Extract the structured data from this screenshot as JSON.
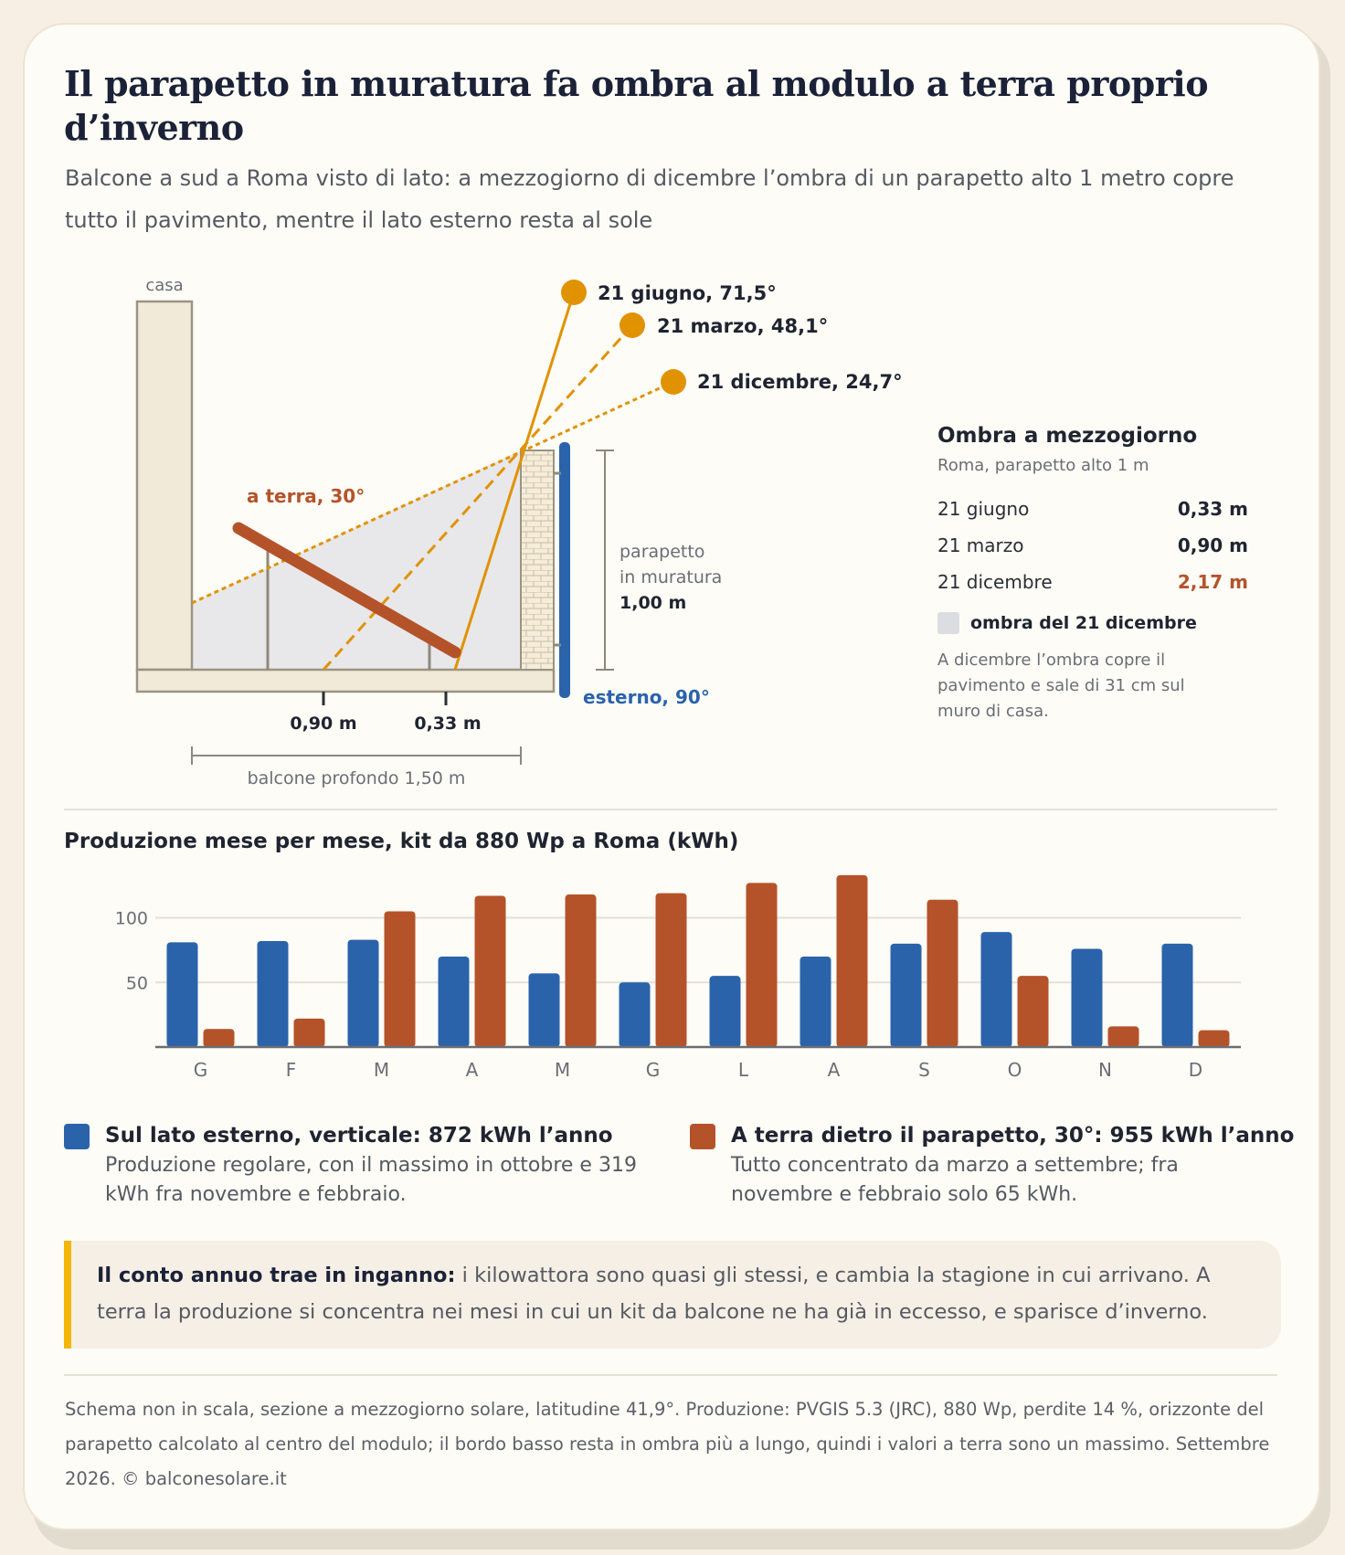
{
  "title": "Il parapetto in muratura fa ombra al modulo a terra proprio d’inverno",
  "subtitle": "Balcone a sud a Roma visto di lato: a mezzogiorno di dicembre l’ombra di un parapetto alto 1 metro copre tutto il pavimento, mentre il lato esterno resta al sole",
  "diagram": {
    "house_label": "casa",
    "ground_panel_label": "a terra, 30°",
    "facade_panel_label": "esterno, 90°",
    "parapet_label_1": "parapetto",
    "parapet_label_2": "in muratura",
    "parapet_height": "1,00 m",
    "marker_march": "0,90 m",
    "marker_june": "0,33 m",
    "depth_label": "balcone profondo 1,50 m",
    "sun_rays": [
      {
        "label": "21 giugno, 71,5°",
        "elevation": 71.5
      },
      {
        "label": "21 marzo, 48,1°",
        "elevation": 48.1
      },
      {
        "label": "21 dicembre, 24,7°",
        "elevation": 24.7
      }
    ],
    "colors": {
      "sun": "#e09200",
      "ground_panel": "#b4532a",
      "facade_panel": "#2b63ab",
      "shadow": "#e8e8ea"
    }
  },
  "shadow_table": {
    "title": "Ombra a mezzogiorno",
    "subtitle": "Roma, parapetto alto 1 m",
    "rows": [
      {
        "label": "21 giugno",
        "value": "0,33 m"
      },
      {
        "label": "21 marzo",
        "value": "0,90 m"
      },
      {
        "label": "21 dicembre",
        "value": "2,17 m"
      }
    ],
    "legend": "ombra del 21 dicembre",
    "note": "A dicembre l’ombra copre il pavimento e sale di 31 cm sul muro di casa."
  },
  "chart_data": {
    "type": "bar",
    "title": "Produzione mese per mese, kit da 880 Wp a Roma (kWh)",
    "categories": [
      "G",
      "F",
      "M",
      "A",
      "M",
      "G",
      "L",
      "A",
      "S",
      "O",
      "N",
      "D"
    ],
    "yticks": [
      50,
      100
    ],
    "ylim": [
      0,
      135
    ],
    "grid": true,
    "series": [
      {
        "name": "Sul lato esterno, verticale",
        "color": "#2b63ab",
        "values": [
          81,
          82,
          83,
          70,
          57,
          50,
          55,
          70,
          80,
          89,
          76,
          80
        ]
      },
      {
        "name": "A terra dietro il parapetto, 30°",
        "color": "#b4532a",
        "values": [
          14,
          22,
          105,
          117,
          118,
          119,
          127,
          133,
          114,
          55,
          16,
          13
        ]
      }
    ]
  },
  "legend": {
    "exterior_title": "Sul lato esterno, verticale: 872 kWh l’anno",
    "exterior_desc": "Produzione regolare, con il massimo in ottobre e 319 kWh fra novembre e febbraio.",
    "ground_title": "A terra dietro il parapetto, 30°: 955 kWh l’anno",
    "ground_desc": "Tutto concentrato da marzo a settembre; fra novembre e febbraio solo 65 kWh."
  },
  "callout": {
    "bold": "Il conto annuo trae in inganno:",
    "text": " i kilowattora sono quasi gli stessi, e cambia la stagione in cui arrivano. A terra la produzione si concentra nei mesi in cui un kit da balcone ne ha già in eccesso, e sparisce d’inverno."
  },
  "footer": "Schema non in scala, sezione a mezzogiorno solare, latitudine 41,9°. Produzione: PVGIS 5.3 (JRC), 880 Wp, perdite 14 %, orizzonte del parapetto calcolato al centro del modulo; il bordo basso resta in ombra più a lungo, quindi i valori a terra sono un massimo. Settembre 2026. © balconesolare.it"
}
